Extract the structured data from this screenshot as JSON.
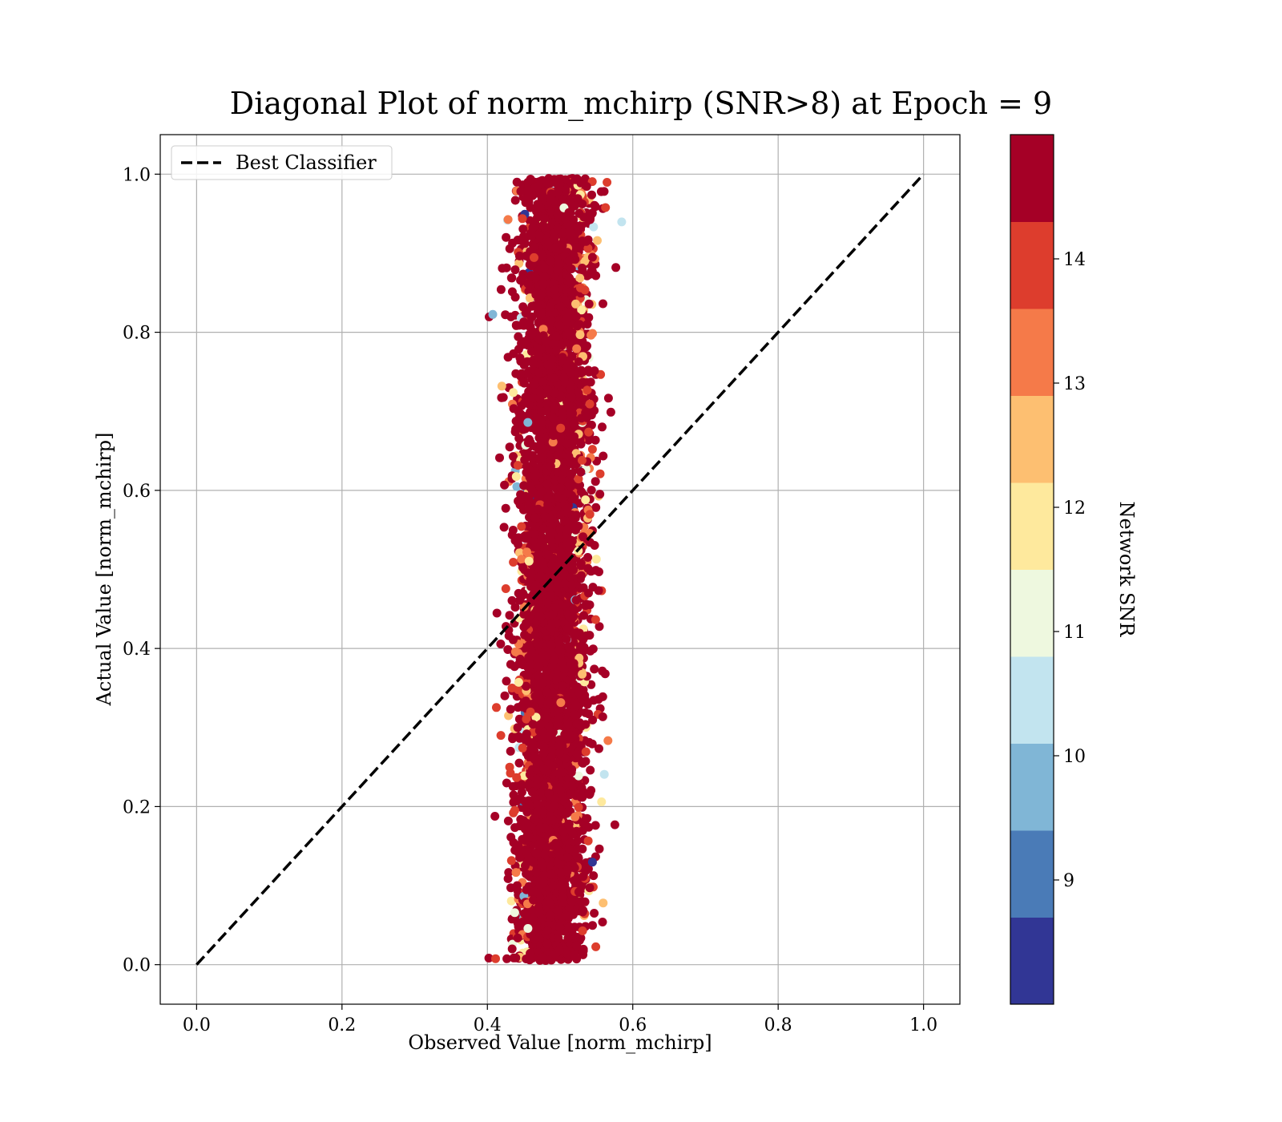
{
  "chart_data": {
    "type": "scatter",
    "title": "Diagonal Plot of norm_mchirp (SNR>8) at Epoch = 9",
    "xlabel": "Observed Value [norm_mchirp]",
    "ylabel": "Actual Value [norm_mchirp]",
    "xlim": [
      -0.05,
      1.05
    ],
    "ylim": [
      -0.05,
      1.05
    ],
    "x_ticks": [
      "0.0",
      "0.2",
      "0.4",
      "0.6",
      "0.8",
      "1.0"
    ],
    "y_ticks": [
      "0.0",
      "0.2",
      "0.4",
      "0.6",
      "0.8",
      "1.0"
    ],
    "grid": true,
    "legend": {
      "placement": "top-left",
      "entries": [
        "Best Classifier"
      ]
    },
    "reference_line": {
      "name": "Best Classifier",
      "style": "dashed",
      "color": "#000000",
      "x": [
        0.0,
        1.0
      ],
      "y": [
        0.0,
        1.0
      ]
    },
    "scatter_cloud": {
      "observed_center": 0.49,
      "observed_spread": 0.025,
      "observed_min": 0.4,
      "observed_max": 0.6,
      "actual_min": 0.0,
      "actual_max": 1.0,
      "dominant_snr": "14+"
    },
    "colorbar": {
      "label": "Network SNR",
      "ticks": [
        "9",
        "10",
        "11",
        "12",
        "13",
        "14"
      ],
      "levels": [
        {
          "range": "<9",
          "color": "#313695"
        },
        {
          "range": "9",
          "color": "#4a7bb7"
        },
        {
          "range": "9.5-10",
          "color": "#80b6d6"
        },
        {
          "range": "10-11",
          "color": "#c2e4ef"
        },
        {
          "range": "11-11.5",
          "color": "#eef8df"
        },
        {
          "range": "11.5-12",
          "color": "#fee99d"
        },
        {
          "range": "12-13",
          "color": "#fdbf71"
        },
        {
          "range": "13-13.5",
          "color": "#f57a49"
        },
        {
          "range": "13.5-14",
          "color": "#dd3d2d"
        },
        {
          "range": ">14",
          "color": "#a50026"
        }
      ]
    }
  }
}
